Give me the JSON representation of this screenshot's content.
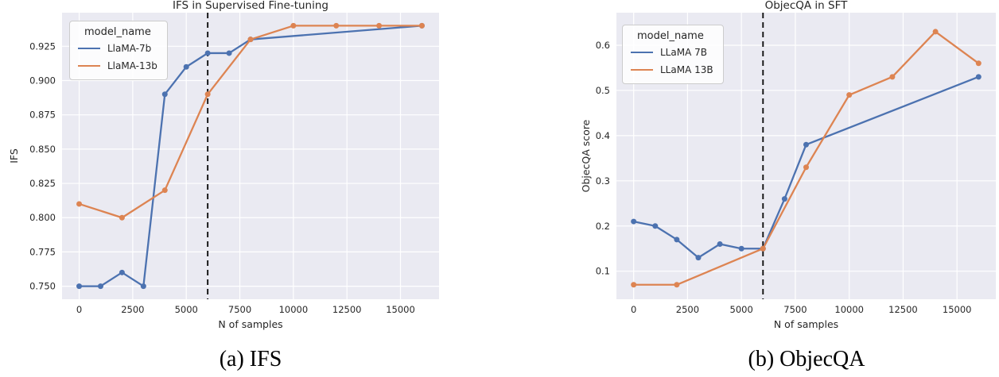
{
  "figure": {
    "background": "#ffffff",
    "text_color": "#262626",
    "plot_bg": "#eaeaf2",
    "grid_color": "#ffffff",
    "vline_color": "#111111"
  },
  "chart_data": [
    {
      "id": "ifs",
      "type": "line",
      "title": "IFS in Supervised Fine-tuning",
      "xlabel": "N of samples",
      "ylabel": "IFS",
      "caption": "(a) IFS",
      "xlim": [
        -800,
        16800
      ],
      "ylim": [
        0.7405,
        0.9495
      ],
      "grid": true,
      "legend_position": "upper left",
      "xticks": {
        "values": [
          0,
          2500,
          5000,
          7500,
          10000,
          12500,
          15000
        ],
        "labels": [
          "0",
          "2500",
          "5000",
          "7500",
          "10000",
          "12500",
          "15000"
        ]
      },
      "yticks": {
        "values": [
          0.75,
          0.775,
          0.8,
          0.825,
          0.85,
          0.875,
          0.9,
          0.925
        ],
        "labels": [
          "0.750",
          "0.775",
          "0.800",
          "0.825",
          "0.850",
          "0.875",
          "0.900",
          "0.925"
        ]
      },
      "vline": {
        "x": 6000,
        "style": "dashed"
      },
      "legend": {
        "title": "model_name",
        "entries": [
          "LlaMA-7b",
          "LlaMA-13b"
        ]
      },
      "series": [
        {
          "name": "LlaMA-7b",
          "color": "#4c72b0",
          "x": [
            0,
            1000,
            2000,
            3000,
            4000,
            5000,
            6000,
            7000,
            8000,
            16000
          ],
          "y": [
            0.75,
            0.75,
            0.76,
            0.75,
            0.89,
            0.91,
            0.92,
            0.92,
            0.93,
            0.94
          ]
        },
        {
          "name": "LlaMA-13b",
          "color": "#dd8452",
          "x": [
            0,
            2000,
            4000,
            6000,
            8000,
            10000,
            12000,
            14000,
            16000
          ],
          "y": [
            0.81,
            0.8,
            0.82,
            0.89,
            0.93,
            0.94,
            0.94,
            0.94,
            0.94
          ]
        }
      ]
    },
    {
      "id": "objecqa",
      "type": "line",
      "title": "ObjecQA in SFT",
      "xlabel": "N of samples",
      "ylabel": "ObjecQA score",
      "caption": "(b) ObjecQA",
      "xlim": [
        -800,
        16800
      ],
      "ylim": [
        0.038,
        0.672
      ],
      "grid": true,
      "legend_position": "upper left",
      "xticks": {
        "values": [
          0,
          2500,
          5000,
          7500,
          10000,
          12500,
          15000
        ],
        "labels": [
          "0",
          "2500",
          "5000",
          "7500",
          "10000",
          "12500",
          "15000"
        ]
      },
      "yticks": {
        "values": [
          0.1,
          0.2,
          0.3,
          0.4,
          0.5,
          0.6
        ],
        "labels": [
          "0.1",
          "0.2",
          "0.3",
          "0.4",
          "0.5",
          "0.6"
        ]
      },
      "vline": {
        "x": 6000,
        "style": "dashed"
      },
      "legend": {
        "title": "model_name",
        "entries": [
          "LLaMA 7B",
          "LLaMA 13B"
        ]
      },
      "series": [
        {
          "name": "LLaMA 7B",
          "color": "#4c72b0",
          "x": [
            0,
            1000,
            2000,
            3000,
            4000,
            5000,
            6000,
            7000,
            8000,
            16000
          ],
          "y": [
            0.21,
            0.2,
            0.17,
            0.13,
            0.16,
            0.15,
            0.15,
            0.26,
            0.38,
            0.53
          ]
        },
        {
          "name": "LLaMA 13B",
          "color": "#dd8452",
          "x": [
            0,
            2000,
            6000,
            8000,
            10000,
            12000,
            14000,
            16000
          ],
          "y": [
            0.07,
            0.07,
            0.15,
            0.33,
            0.49,
            0.53,
            0.63,
            0.56
          ]
        }
      ]
    }
  ]
}
